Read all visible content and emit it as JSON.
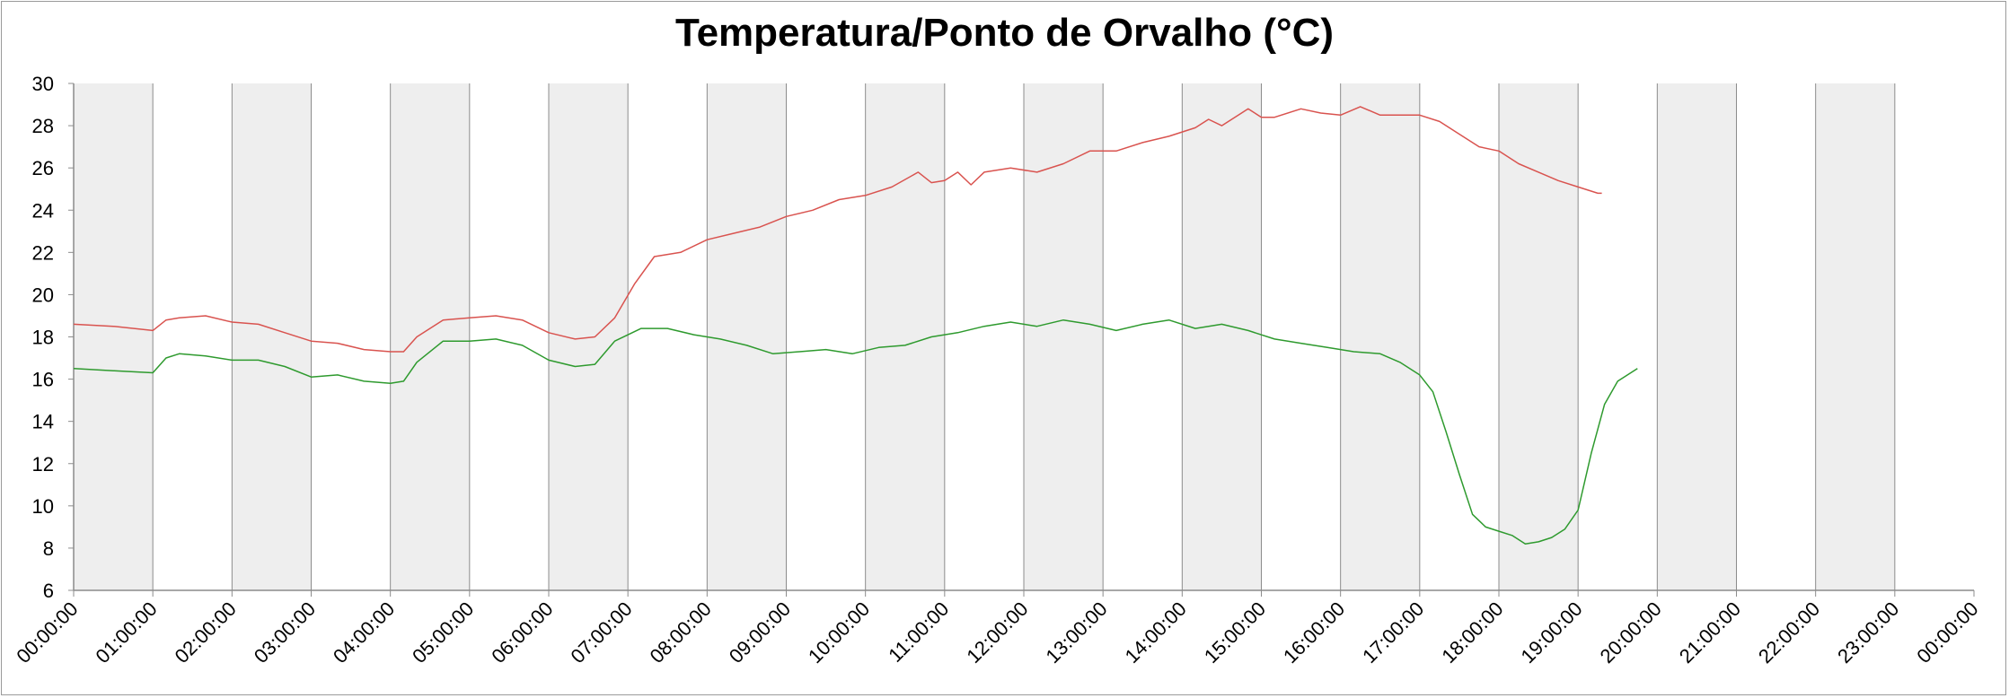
{
  "chart_data": {
    "type": "line",
    "title": "Temperatura/Ponto de Orvalho (°C)",
    "xlabel": "",
    "ylabel": "",
    "ylim": [
      6,
      30
    ],
    "y_ticks": [
      6,
      8,
      10,
      12,
      14,
      16,
      18,
      20,
      22,
      24,
      26,
      28,
      30
    ],
    "x_range_hours": [
      0,
      24
    ],
    "x_tick_labels": [
      "00:00:00",
      "01:00:00",
      "02:00:00",
      "03:00:00",
      "04:00:00",
      "05:00:00",
      "06:00:00",
      "07:00:00",
      "08:00:00",
      "09:00:00",
      "10:00:00",
      "11:00:00",
      "12:00:00",
      "13:00:00",
      "14:00:00",
      "15:00:00",
      "16:00:00",
      "17:00:00",
      "18:00:00",
      "19:00:00",
      "20:00:00",
      "21:00:00",
      "22:00:00",
      "23:00:00",
      "00:00:00"
    ],
    "alternating_hour_bands": true,
    "legend": "none",
    "series": [
      {
        "color": "#d9534f",
        "points": [
          [
            "00:00:00",
            18.6
          ],
          [
            "00:30:00",
            18.5
          ],
          [
            "01:00:00",
            18.3
          ],
          [
            "01:10:00",
            18.8
          ],
          [
            "01:20:00",
            18.9
          ],
          [
            "01:40:00",
            19.0
          ],
          [
            "02:00:00",
            18.7
          ],
          [
            "02:20:00",
            18.6
          ],
          [
            "02:40:00",
            18.2
          ],
          [
            "03:00:00",
            17.8
          ],
          [
            "03:20:00",
            17.7
          ],
          [
            "03:40:00",
            17.4
          ],
          [
            "04:00:00",
            17.3
          ],
          [
            "04:10:00",
            17.3
          ],
          [
            "04:20:00",
            18.0
          ],
          [
            "04:40:00",
            18.8
          ],
          [
            "05:00:00",
            18.9
          ],
          [
            "05:20:00",
            19.0
          ],
          [
            "05:40:00",
            18.8
          ],
          [
            "06:00:00",
            18.2
          ],
          [
            "06:20:00",
            17.9
          ],
          [
            "06:35:00",
            18.0
          ],
          [
            "06:50:00",
            18.9
          ],
          [
            "07:05:00",
            20.5
          ],
          [
            "07:20:00",
            21.8
          ],
          [
            "07:40:00",
            22.0
          ],
          [
            "08:00:00",
            22.6
          ],
          [
            "08:20:00",
            22.9
          ],
          [
            "08:40:00",
            23.2
          ],
          [
            "09:00:00",
            23.7
          ],
          [
            "09:20:00",
            24.0
          ],
          [
            "09:40:00",
            24.5
          ],
          [
            "10:00:00",
            24.7
          ],
          [
            "10:20:00",
            25.1
          ],
          [
            "10:40:00",
            25.8
          ],
          [
            "10:50:00",
            25.3
          ],
          [
            "11:00:00",
            25.4
          ],
          [
            "11:10:00",
            25.8
          ],
          [
            "11:20:00",
            25.2
          ],
          [
            "11:30:00",
            25.8
          ],
          [
            "11:50:00",
            26.0
          ],
          [
            "12:10:00",
            25.8
          ],
          [
            "12:30:00",
            26.2
          ],
          [
            "12:50:00",
            26.8
          ],
          [
            "13:10:00",
            26.8
          ],
          [
            "13:30:00",
            27.2
          ],
          [
            "13:50:00",
            27.5
          ],
          [
            "14:10:00",
            27.9
          ],
          [
            "14:20:00",
            28.3
          ],
          [
            "14:30:00",
            28.0
          ],
          [
            "14:50:00",
            28.8
          ],
          [
            "15:00:00",
            28.4
          ],
          [
            "15:10:00",
            28.4
          ],
          [
            "15:30:00",
            28.8
          ],
          [
            "15:45:00",
            28.6
          ],
          [
            "16:00:00",
            28.5
          ],
          [
            "16:15:00",
            28.9
          ],
          [
            "16:30:00",
            28.5
          ],
          [
            "16:50:00",
            28.5
          ],
          [
            "17:00:00",
            28.5
          ],
          [
            "17:15:00",
            28.2
          ],
          [
            "17:30:00",
            27.6
          ],
          [
            "17:45:00",
            27.0
          ],
          [
            "18:00:00",
            26.8
          ],
          [
            "18:15:00",
            26.2
          ],
          [
            "18:30:00",
            25.8
          ],
          [
            "18:45:00",
            25.4
          ],
          [
            "19:00:00",
            25.1
          ],
          [
            "19:15:00",
            24.8
          ],
          [
            "19:18:00",
            24.8
          ]
        ]
      },
      {
        "color": "#2e9a2e",
        "points": [
          [
            "00:00:00",
            16.5
          ],
          [
            "00:30:00",
            16.4
          ],
          [
            "01:00:00",
            16.3
          ],
          [
            "01:10:00",
            17.0
          ],
          [
            "01:20:00",
            17.2
          ],
          [
            "01:40:00",
            17.1
          ],
          [
            "02:00:00",
            16.9
          ],
          [
            "02:20:00",
            16.9
          ],
          [
            "02:40:00",
            16.6
          ],
          [
            "03:00:00",
            16.1
          ],
          [
            "03:20:00",
            16.2
          ],
          [
            "03:40:00",
            15.9
          ],
          [
            "04:00:00",
            15.8
          ],
          [
            "04:10:00",
            15.9
          ],
          [
            "04:20:00",
            16.8
          ],
          [
            "04:40:00",
            17.8
          ],
          [
            "05:00:00",
            17.8
          ],
          [
            "05:20:00",
            17.9
          ],
          [
            "05:40:00",
            17.6
          ],
          [
            "06:00:00",
            16.9
          ],
          [
            "06:20:00",
            16.6
          ],
          [
            "06:35:00",
            16.7
          ],
          [
            "06:50:00",
            17.8
          ],
          [
            "07:10:00",
            18.4
          ],
          [
            "07:30:00",
            18.4
          ],
          [
            "07:50:00",
            18.1
          ],
          [
            "08:10:00",
            17.9
          ],
          [
            "08:30:00",
            17.6
          ],
          [
            "08:50:00",
            17.2
          ],
          [
            "09:10:00",
            17.3
          ],
          [
            "09:30:00",
            17.4
          ],
          [
            "09:50:00",
            17.2
          ],
          [
            "10:10:00",
            17.5
          ],
          [
            "10:30:00",
            17.6
          ],
          [
            "10:50:00",
            18.0
          ],
          [
            "11:10:00",
            18.2
          ],
          [
            "11:30:00",
            18.5
          ],
          [
            "11:50:00",
            18.7
          ],
          [
            "12:10:00",
            18.5
          ],
          [
            "12:30:00",
            18.8
          ],
          [
            "12:50:00",
            18.6
          ],
          [
            "13:10:00",
            18.3
          ],
          [
            "13:30:00",
            18.6
          ],
          [
            "13:50:00",
            18.8
          ],
          [
            "14:10:00",
            18.4
          ],
          [
            "14:30:00",
            18.6
          ],
          [
            "14:50:00",
            18.3
          ],
          [
            "15:10:00",
            17.9
          ],
          [
            "15:30:00",
            17.7
          ],
          [
            "15:50:00",
            17.5
          ],
          [
            "16:10:00",
            17.3
          ],
          [
            "16:30:00",
            17.2
          ],
          [
            "16:45:00",
            16.8
          ],
          [
            "17:00:00",
            16.2
          ],
          [
            "17:10:00",
            15.4
          ],
          [
            "17:20:00",
            13.5
          ],
          [
            "17:30:00",
            11.5
          ],
          [
            "17:40:00",
            9.6
          ],
          [
            "17:50:00",
            9.0
          ],
          [
            "18:00:00",
            8.8
          ],
          [
            "18:10:00",
            8.6
          ],
          [
            "18:20:00",
            8.2
          ],
          [
            "18:30:00",
            8.3
          ],
          [
            "18:40:00",
            8.5
          ],
          [
            "18:50:00",
            8.9
          ],
          [
            "19:00:00",
            9.8
          ],
          [
            "19:10:00",
            12.5
          ],
          [
            "19:20:00",
            14.8
          ],
          [
            "19:30:00",
            15.9
          ],
          [
            "19:40:00",
            16.3
          ],
          [
            "19:45:00",
            16.5
          ]
        ]
      }
    ]
  }
}
